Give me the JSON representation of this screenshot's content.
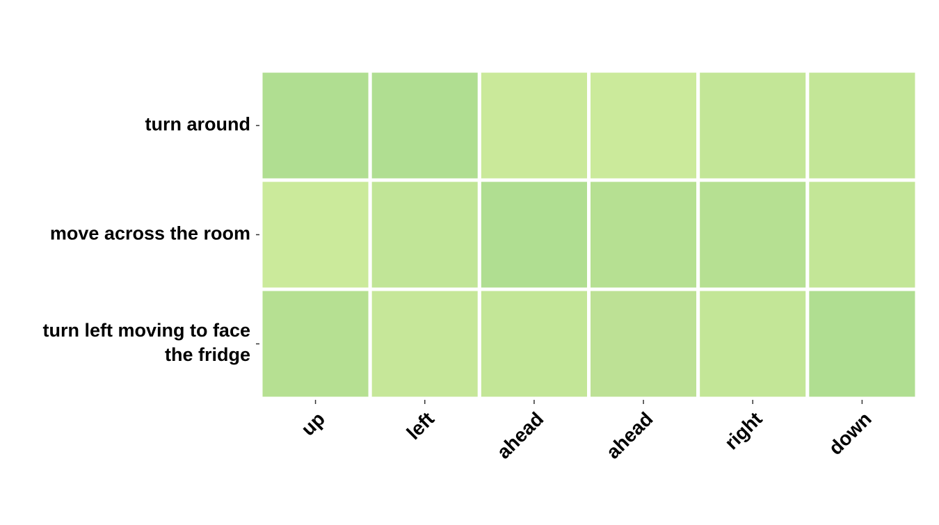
{
  "chart_data": {
    "type": "heatmap",
    "title": "",
    "xlabel": "",
    "ylabel": "",
    "x_categories": [
      "up",
      "left",
      "ahead",
      "ahead",
      "right",
      "down"
    ],
    "y_categories": [
      "turn around",
      "move across the room",
      "turn left moving to face the fridge"
    ],
    "y_category_lines": [
      [
        "turn around"
      ],
      [
        "move across the room"
      ],
      [
        "turn left moving to face",
        "the fridge"
      ]
    ],
    "cell_colors": [
      [
        "#b0de91",
        "#b0de91",
        "#cae99a",
        "#cbea9b",
        "#c3e697",
        "#c3e697"
      ],
      [
        "#cbea9b",
        "#c1e597",
        "#b0de91",
        "#b6e092",
        "#b6e092",
        "#c3e697"
      ],
      [
        "#b6e092",
        "#c6e799",
        "#c3e697",
        "#bde195",
        "#c3e697",
        "#b0de91"
      ]
    ],
    "colorbar": false,
    "grid_color": "#ffffff"
  }
}
